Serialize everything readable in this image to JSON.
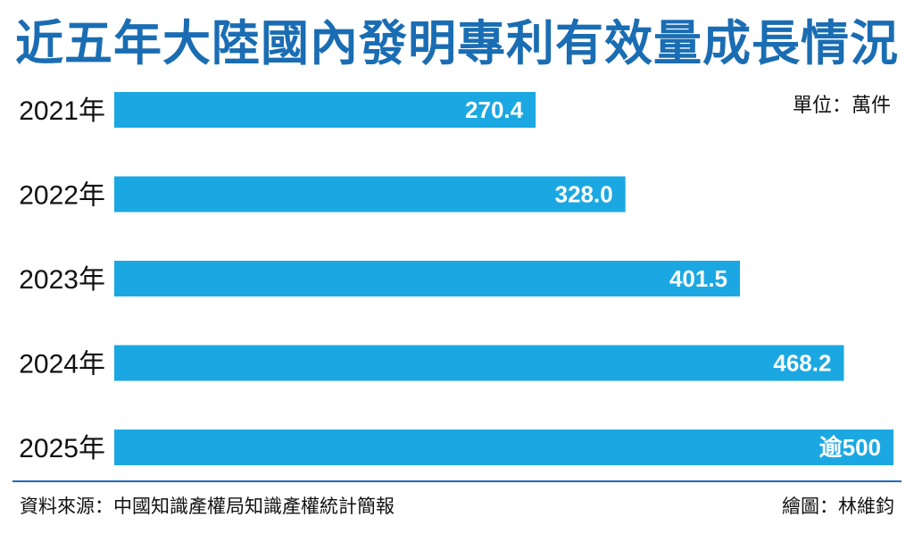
{
  "title": "近五年大陸國內發明專利有效量成長情況",
  "unit": "單位：萬件",
  "source": "資料來源：中國知識產權局知識產權統計簡報",
  "credit": "繪圖：林維鈞",
  "colors": {
    "title": "#1a6db3",
    "bar": "#1ba8e2",
    "divider": "#1a6db3"
  },
  "chart_data": {
    "type": "bar",
    "orientation": "horizontal",
    "title": "近五年大陸國內發明專利有效量成長情況",
    "unit": "萬件",
    "categories": [
      "2021年",
      "2022年",
      "2023年",
      "2024年",
      "2025年"
    ],
    "values": [
      270.4,
      328.0,
      401.5,
      468.2,
      500
    ],
    "value_labels": [
      "270.4",
      "328.0",
      "401.5",
      "468.2",
      "逾500"
    ],
    "xlim": [
      0,
      500
    ],
    "grid": false,
    "legend": "none"
  }
}
